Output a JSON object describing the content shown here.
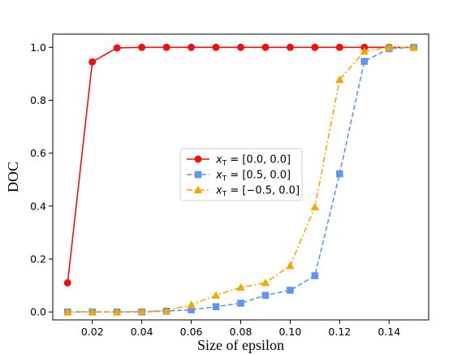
{
  "chart_data": {
    "type": "line",
    "xlabel": "Size of epsilon",
    "ylabel": "DOC",
    "xlim": [
      0.004,
      0.156
    ],
    "ylim": [
      -0.03,
      1.05
    ],
    "xticks": [
      0.02,
      0.04,
      0.06,
      0.08,
      0.1,
      0.12,
      0.14
    ],
    "xtick_labels": [
      "0.02",
      "0.04",
      "0.06",
      "0.08",
      "0.10",
      "0.12",
      "0.14"
    ],
    "yticks": [
      0.0,
      0.2,
      0.4,
      0.6,
      0.8,
      1.0
    ],
    "ytick_labels": [
      "0.0",
      "0.2",
      "0.4",
      "0.6",
      "0.8",
      "1.0"
    ],
    "grid": false,
    "legend_position": "center-left",
    "x": [
      0.01,
      0.02,
      0.03,
      0.04,
      0.05,
      0.06,
      0.07,
      0.08,
      0.09,
      0.1,
      0.11,
      0.12,
      0.13,
      0.14,
      0.15
    ],
    "series": [
      {
        "name": "x_T = [0.0, 0.0]",
        "legend_var": "x",
        "legend_sub": "T",
        "legend_rest": " = [0.0, 0.0]",
        "color": "#ee1111",
        "linestyle": "solid",
        "marker": "circle",
        "values": [
          0.11,
          0.945,
          0.998,
          1.0,
          1.0,
          1.0,
          1.0,
          1.0,
          1.0,
          1.0,
          1.0,
          1.0,
          1.0,
          1.0,
          1.0
        ]
      },
      {
        "name": "x_T = [0.5, 0.0]",
        "legend_var": "x",
        "legend_sub": "T",
        "legend_rest": " = [0.5, 0.0]",
        "color": "#6495ed",
        "linestyle": "dashed",
        "marker": "square",
        "values": [
          0.0,
          0.0,
          0.0,
          0.0,
          0.003,
          0.008,
          0.02,
          0.033,
          0.063,
          0.082,
          0.137,
          0.522,
          0.947,
          0.995,
          1.0
        ]
      },
      {
        "name": "x_T = [−0.5, 0.0]",
        "legend_var": "x",
        "legend_sub": "T",
        "legend_rest": " = [−0.5, 0.0]",
        "color": "#f5a700",
        "linestyle": "dashdot",
        "marker": "triangle",
        "values": [
          0.0,
          0.0,
          0.0,
          0.002,
          0.005,
          0.027,
          0.063,
          0.093,
          0.11,
          0.175,
          0.397,
          0.878,
          0.985,
          1.0,
          1.0
        ]
      }
    ]
  }
}
